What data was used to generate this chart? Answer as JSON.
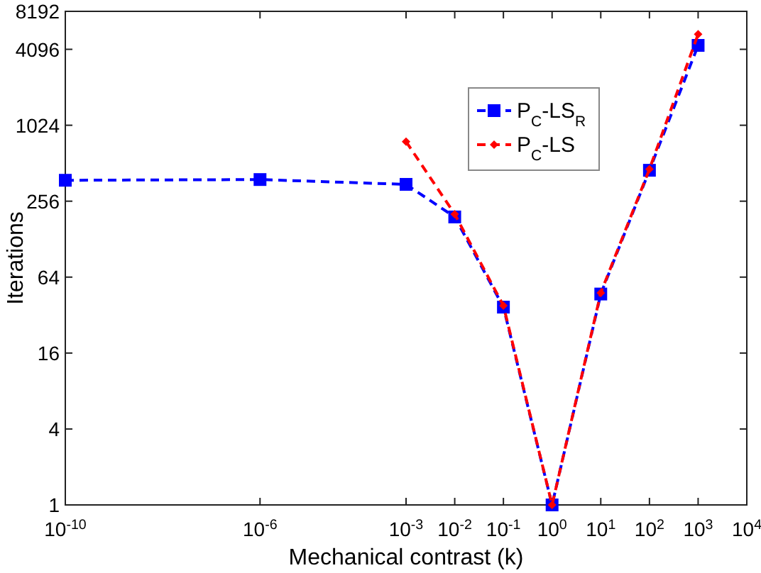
{
  "chart_data": {
    "type": "line",
    "xlabel": "Mechanical contrast (k)",
    "ylabel": "Iterations",
    "log": "xy",
    "line_style": "dashed",
    "legend": "top right",
    "grid": false,
    "xlim": [
      1e-10,
      10000
    ],
    "xticks": [
      {
        "value": 1e-10,
        "label": "10$^{-10}$"
      },
      {
        "value": 1e-06,
        "label": "10$^{-6}$"
      },
      {
        "value": 0.001,
        "label": "10$^{-3}$"
      },
      {
        "value": 0.01,
        "label": "10$^{-2}$"
      },
      {
        "value": 0.1,
        "label": "10$^{-1}$"
      },
      {
        "value": 1,
        "label": "10$^{0}$"
      },
      {
        "value": 10,
        "label": "10$^{1}$"
      },
      {
        "value": 100,
        "label": "10$^{2}$"
      },
      {
        "value": 1000,
        "label": "10$^{3}$"
      },
      {
        "value": 10000,
        "label": "10$^{4}$"
      }
    ],
    "ylim": [
      1,
      8192
    ],
    "yticks": [
      1,
      4,
      16,
      64,
      256,
      1024,
      4096,
      8192
    ],
    "series": [
      {
        "name": "P$_{C}$-LS$_{R}$",
        "color": "#0000ff",
        "marker": "square",
        "x": [
          1e-10,
          1e-06,
          0.001,
          0.01,
          0.1,
          1,
          10,
          100,
          1000
        ],
        "values": [
          375,
          380,
          348,
          192,
          37,
          1,
          47,
          450,
          4400
        ]
      },
      {
        "name": "P$_{C}$-LS",
        "color": "#ff0000",
        "marker": "diamond",
        "x": [
          0.001,
          0.01,
          0.1,
          1,
          10,
          100,
          1000
        ],
        "values": [
          760,
          202,
          38,
          1,
          48,
          460,
          5400
        ]
      }
    ]
  }
}
